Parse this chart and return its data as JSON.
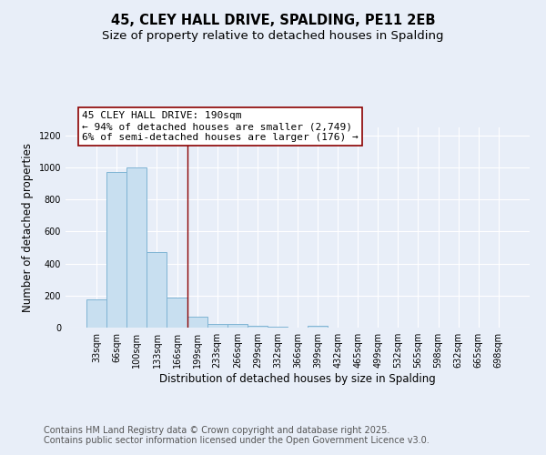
{
  "title1": "45, CLEY HALL DRIVE, SPALDING, PE11 2EB",
  "title2": "Size of property relative to detached houses in Spalding",
  "xlabel": "Distribution of detached houses by size in Spalding",
  "ylabel": "Number of detached properties",
  "categories": [
    "33sqm",
    "66sqm",
    "100sqm",
    "133sqm",
    "166sqm",
    "199sqm",
    "233sqm",
    "266sqm",
    "299sqm",
    "332sqm",
    "366sqm",
    "399sqm",
    "432sqm",
    "465sqm",
    "499sqm",
    "532sqm",
    "565sqm",
    "598sqm",
    "632sqm",
    "665sqm",
    "698sqm"
  ],
  "values": [
    175,
    970,
    1000,
    470,
    190,
    70,
    25,
    20,
    10,
    5,
    0,
    10,
    0,
    0,
    0,
    0,
    0,
    0,
    0,
    0,
    0
  ],
  "bar_color": "#c8dff0",
  "bar_edge_color": "#7fb4d4",
  "vline_x": 4.5,
  "vline_color": "#8b0000",
  "annotation_text": "45 CLEY HALL DRIVE: 190sqm\n← 94% of detached houses are smaller (2,749)\n6% of semi-detached houses are larger (176) →",
  "annotation_box_color": "#ffffff",
  "annotation_box_edge": "#8b0000",
  "ylim": [
    0,
    1250
  ],
  "yticks": [
    0,
    200,
    400,
    600,
    800,
    1000,
    1200
  ],
  "footer1": "Contains HM Land Registry data © Crown copyright and database right 2025.",
  "footer2": "Contains public sector information licensed under the Open Government Licence v3.0.",
  "bg_color": "#e8eef8",
  "grid_color": "#ffffff",
  "title_fontsize": 10.5,
  "subtitle_fontsize": 9.5,
  "annot_fontsize": 8,
  "footer_fontsize": 7,
  "xlabel_fontsize": 8.5,
  "ylabel_fontsize": 8.5,
  "tick_fontsize": 7
}
